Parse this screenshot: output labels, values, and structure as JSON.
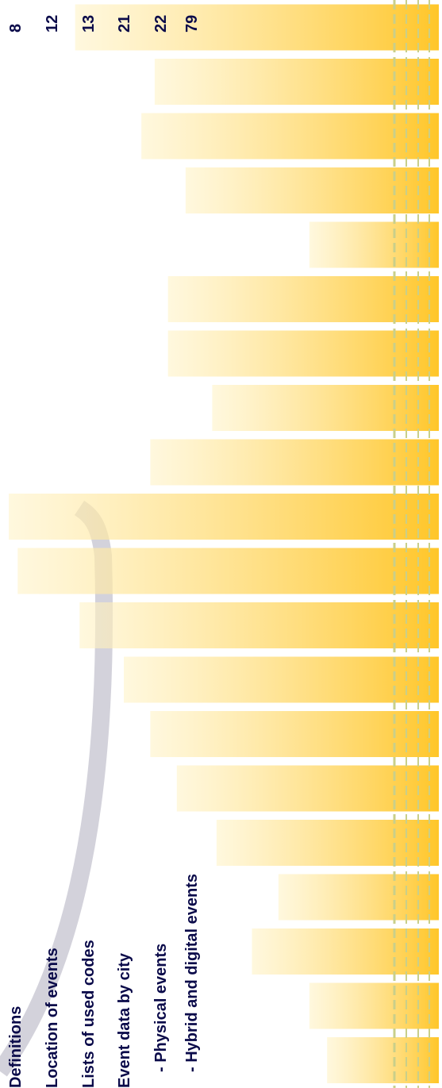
{
  "colors": {
    "bar_light": "#fff3c8",
    "bar_dark": "#ffc629",
    "text": "#0b0b4a",
    "accent_line": "#c4c98a",
    "swoosh": "#b9b6c6"
  },
  "toc": {
    "items": [
      {
        "label": "Definitions",
        "page": "8",
        "indent": false
      },
      {
        "label": "Location of events",
        "page": "12",
        "indent": false
      },
      {
        "label": "Lists of used codes",
        "page": "13",
        "indent": false
      },
      {
        "label": "Event data by city",
        "page": "21",
        "indent": false
      },
      {
        "label": "- Physical events",
        "page": "22",
        "indent": true
      },
      {
        "label": "- Hybrid and digital events",
        "page": "79",
        "indent": true
      }
    ]
  },
  "bars_start_fraction": [
    0.74,
    0.7,
    0.57,
    0.63,
    0.49,
    0.4,
    0.34,
    0.28,
    0.18,
    0.04,
    0.02,
    0.34,
    0.48,
    0.38,
    0.38,
    0.7,
    0.42,
    0.32,
    0.35,
    0.17,
    0.03
  ]
}
